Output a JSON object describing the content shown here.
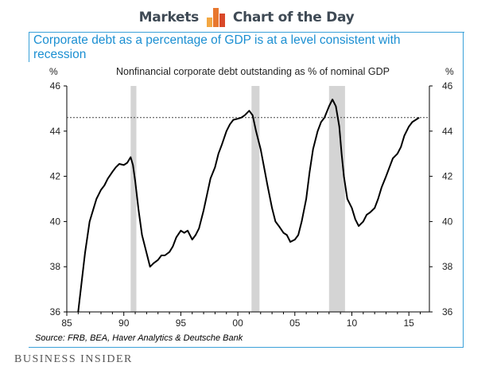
{
  "header": {
    "left_text": "Markets",
    "right_text": "Chart of the Day",
    "logo_colors": [
      "#f3a743",
      "#e8772e",
      "#d9492a"
    ]
  },
  "title": "Corporate debt as a percentage of GDP is at a level consistent with recession",
  "source": "Source: FRB, BEA, Haver Analytics & Deutsche Bank",
  "footer": "Business Insider",
  "chart_data": {
    "type": "line",
    "title": "Nonfinancial corporate debt outstanding as % of nominal GDP",
    "ylabel_left": "%",
    "ylabel_right": "%",
    "xlim": [
      1985,
      2016.8
    ],
    "ylim": [
      36,
      46
    ],
    "x_ticks": [
      1985,
      1990,
      1995,
      2000,
      2005,
      2010,
      2015
    ],
    "x_tick_labels": [
      "85",
      "90",
      "95",
      "00",
      "05",
      "10",
      "15"
    ],
    "y_ticks": [
      36,
      38,
      40,
      42,
      44,
      46
    ],
    "y_tick_labels": [
      "36",
      "38",
      "40",
      "42",
      "44",
      "46"
    ],
    "reference_line": 44.6,
    "recessions": [
      [
        1990.6,
        1991.1
      ],
      [
        2001.2,
        2001.9
      ],
      [
        2008.0,
        2009.4
      ]
    ],
    "line_color": "#000000",
    "recession_color": "#d4d4d4",
    "series": [
      {
        "x": [
          1986.0,
          1986.3,
          1986.6,
          1987.0,
          1987.3,
          1987.6,
          1988.0,
          1988.3,
          1988.6,
          1989.0,
          1989.3,
          1989.6,
          1990.0,
          1990.3,
          1990.6,
          1990.8,
          1991.0,
          1991.3,
          1991.6,
          1992.0,
          1992.3,
          1992.6,
          1993.0,
          1993.3,
          1993.6,
          1994.0,
          1994.3,
          1994.6,
          1995.0,
          1995.3,
          1995.6,
          1996.0,
          1996.3,
          1996.6,
          1997.0,
          1997.3,
          1997.6,
          1998.0,
          1998.3,
          1998.6,
          1999.0,
          1999.3,
          1999.6,
          2000.0,
          2000.3,
          2000.6,
          2001.0,
          2001.3,
          2001.6,
          2001.8,
          2002.0,
          2002.3,
          2002.6,
          2003.0,
          2003.3,
          2003.6,
          2004.0,
          2004.3,
          2004.6,
          2005.0,
          2005.3,
          2005.6,
          2006.0,
          2006.3,
          2006.6,
          2007.0,
          2007.3,
          2007.6,
          2008.0,
          2008.3,
          2008.6,
          2008.9,
          2009.1,
          2009.3,
          2009.6,
          2010.0,
          2010.3,
          2010.6,
          2011.0,
          2011.3,
          2011.6,
          2012.0,
          2012.3,
          2012.6,
          2013.0,
          2013.3,
          2013.6,
          2014.0,
          2014.3,
          2014.6,
          2015.0,
          2015.3,
          2015.6,
          2015.9
        ],
        "y": [
          36.0,
          37.3,
          38.6,
          40.0,
          40.5,
          41.0,
          41.4,
          41.6,
          41.9,
          42.2,
          42.4,
          42.55,
          42.5,
          42.6,
          42.85,
          42.5,
          41.8,
          40.5,
          39.4,
          38.6,
          38.0,
          38.15,
          38.3,
          38.5,
          38.5,
          38.65,
          38.9,
          39.3,
          39.6,
          39.5,
          39.6,
          39.2,
          39.4,
          39.7,
          40.5,
          41.2,
          41.9,
          42.4,
          43.0,
          43.4,
          44.0,
          44.3,
          44.5,
          44.55,
          44.6,
          44.7,
          44.9,
          44.7,
          44.0,
          43.6,
          43.2,
          42.4,
          41.6,
          40.6,
          40.0,
          39.8,
          39.5,
          39.4,
          39.1,
          39.2,
          39.4,
          40.0,
          41.0,
          42.2,
          43.2,
          44.0,
          44.4,
          44.6,
          45.1,
          45.4,
          45.1,
          44.2,
          43.0,
          42.0,
          41.0,
          40.6,
          40.1,
          39.8,
          40.0,
          40.3,
          40.4,
          40.6,
          41.0,
          41.5,
          42.0,
          42.4,
          42.8,
          43.0,
          43.3,
          43.8,
          44.2,
          44.4,
          44.5,
          44.6
        ]
      }
    ]
  }
}
